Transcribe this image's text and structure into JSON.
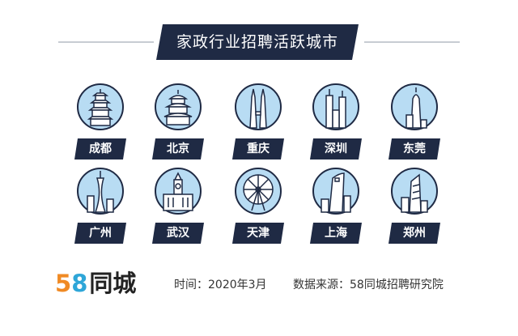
{
  "title": "家政行业招聘活跃城市",
  "colors": {
    "navy": "#1f2a44",
    "circle": "#b8dcf3",
    "outline": "#1f2a44",
    "accent": "#2ea6d8",
    "logo_orange": "#f08a24"
  },
  "cities": [
    {
      "name": "成都",
      "icon": "pagoda-icon"
    },
    {
      "name": "北京",
      "icon": "temple-of-heaven-icon"
    },
    {
      "name": "重庆",
      "icon": "twin-towers-icon"
    },
    {
      "name": "深圳",
      "icon": "skyscrapers-icon"
    },
    {
      "name": "东莞",
      "icon": "tower-icon"
    },
    {
      "name": "广州",
      "icon": "canton-tower-icon"
    },
    {
      "name": "武汉",
      "icon": "clock-building-icon"
    },
    {
      "name": "天津",
      "icon": "ferris-wheel-icon"
    },
    {
      "name": "上海",
      "icon": "shanghai-tower-icon"
    },
    {
      "name": "郑州",
      "icon": "office-tower-icon"
    }
  ],
  "logo": {
    "digit1": "5",
    "digit2": "8",
    "text": "同城"
  },
  "footer": {
    "time": "时间：2020年3月",
    "source": "数据来源：58同城招聘研究院"
  }
}
